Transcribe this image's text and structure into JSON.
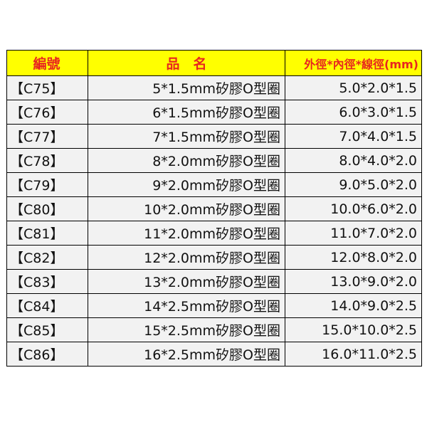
{
  "table": {
    "header": [
      "編號",
      "品　名",
      "外徑*內徑*線徑(mm)"
    ],
    "rows": [
      [
        "【C75】",
        "5*1.5mm矽膠O型圈",
        "5.0*2.0*1.5"
      ],
      [
        "【C76】",
        "6*1.5mm矽膠O型圈",
        "6.0*3.0*1.5"
      ],
      [
        "【C77】",
        "7*1.5mm矽膠O型圈",
        "7.0*4.0*1.5"
      ],
      [
        "【C78】",
        "8*2.0mm矽膠O型圈",
        "8.0*4.0*2.0"
      ],
      [
        "【C79】",
        "9*2.0mm矽膠O型圈",
        "9.0*5.0*2.0"
      ],
      [
        "【C80】",
        "10*2.0mm矽膠O型圈",
        "10.0*6.0*2.0"
      ],
      [
        "【C81】",
        "11*2.0mm矽膠O型圈",
        "11.0*7.0*2.0"
      ],
      [
        "【C82】",
        "12*2.0mm矽膠O型圈",
        "12.0*8.0*2.0"
      ],
      [
        "【C83】",
        "13*2.0mm矽膠O型圈",
        "13.0*9.0*2.0"
      ],
      [
        "【C84】",
        "14*2.5mm矽膠O型圈",
        "14.0*9.0*2.5"
      ],
      [
        "【C85】",
        "15*2.5mm矽膠O型圈",
        "15.0*10.0*2.5"
      ],
      [
        "【C86】",
        "16*2.5mm矽膠O型圈",
        "16.0*11.0*2.5"
      ]
    ]
  }
}
